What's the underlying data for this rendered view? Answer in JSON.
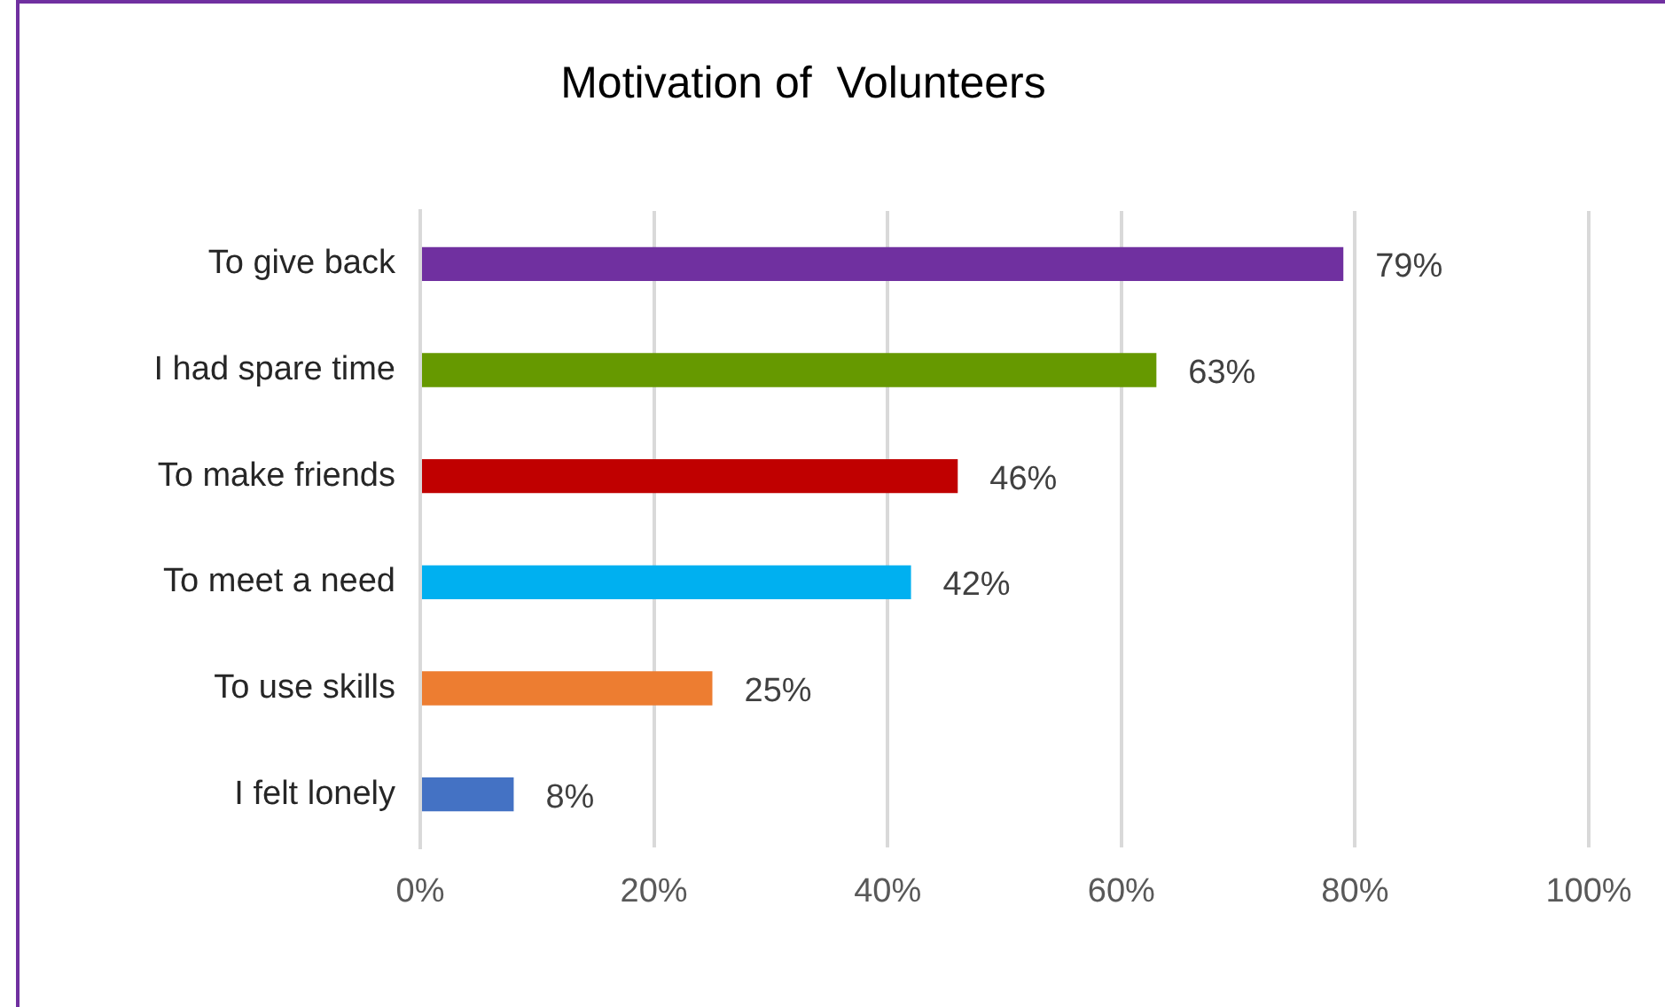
{
  "chart_data": {
    "type": "bar",
    "orientation": "horizontal",
    "title": "Motivation of  Volunteers",
    "categories": [
      "To give back",
      "I had spare time",
      "To make friends",
      "To meet a need",
      "To use skills",
      "I felt lonely"
    ],
    "values": [
      79,
      63,
      46,
      42,
      25,
      8
    ],
    "colors": [
      "#7030a0",
      "#669900",
      "#c00000",
      "#00b0f0",
      "#ed7d31",
      "#4472c4"
    ],
    "value_labels": [
      "79%",
      "63%",
      "46%",
      "42%",
      "25%",
      "8%"
    ],
    "xlim": [
      0,
      100
    ],
    "xticks": [
      {
        "value": 0,
        "label": "0%"
      },
      {
        "value": 20,
        "label": "20%"
      },
      {
        "value": 40,
        "label": "40%"
      },
      {
        "value": 60,
        "label": "60%"
      },
      {
        "value": 80,
        "label": "80%"
      },
      {
        "value": 100,
        "label": "100%"
      }
    ],
    "grid": "x",
    "legend": false
  }
}
